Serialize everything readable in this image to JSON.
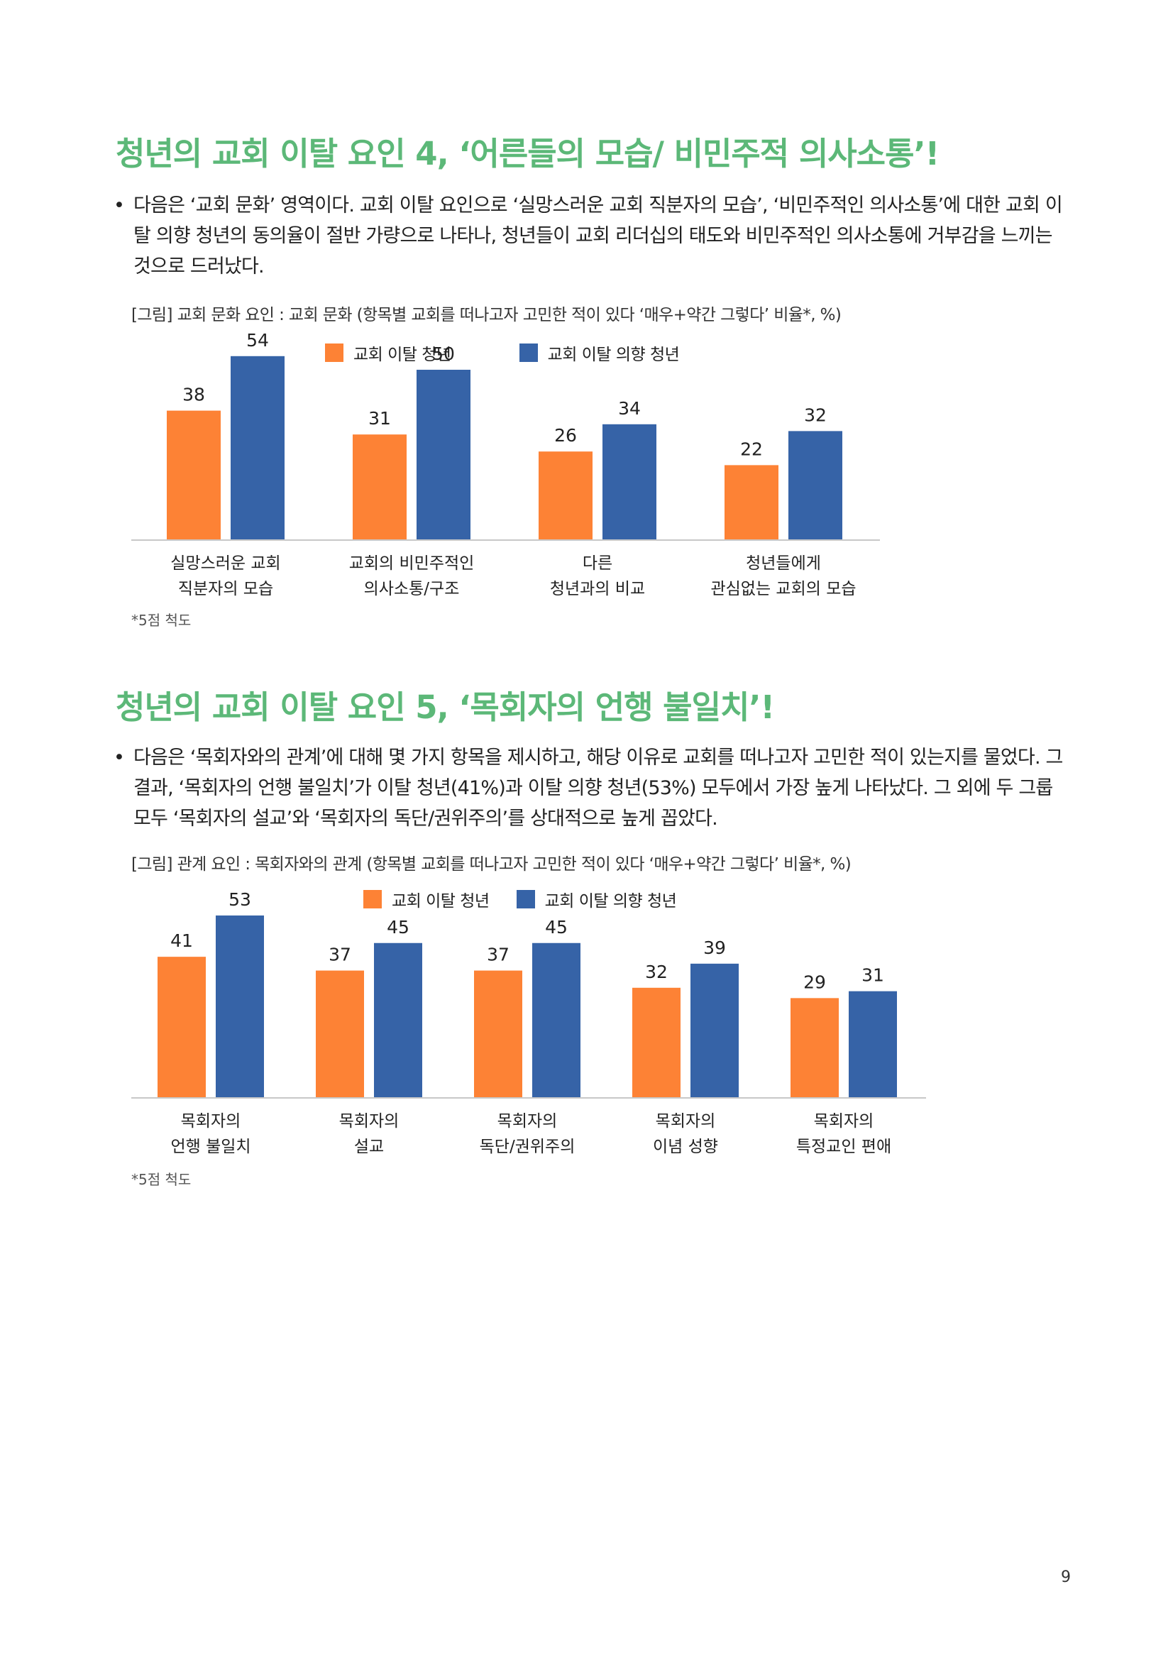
{
  "sections": [
    {
      "title": "청년의 교회 이탈 요인 4, ‘어른들의 모습/ 비민주적 의사소통’!",
      "bullet": "다음은 ‘교회 문화’ 영역이다. 교회 이탈 요인으로 ‘실망스러운 교회 직분자의 모습’, ‘비민주적인 의사소통’에 대한 교회 이탈 의향 청년의 동의율이 절반 가량으로 나타나, 청년들이 교회 리더십의 태도와 비민주적인 의사소통에 거부감을 느끼는 것으로 드러났다.",
      "caption": "[그림] 교회 문화 요인 : 교회 문화 (항목별 교회를 떠나고자 고민한 적이 있다 ‘매우+약간 그렇다’ 비율*, %)",
      "note": "*5점 척도"
    },
    {
      "title": "청년의 교회 이탈 요인 5, ‘목회자의 언행 불일치’!",
      "bullet": "다음은 ‘목회자와의 관계’에 대해 몇 가지 항목을 제시하고, 해당 이유로 교회를 떠나고자 고민한 적이 있는지를 물었다. 그 결과, ‘목회자의 언행 불일치’가 이탈 청년(41%)과 이탈 의향 청년(53%) 모두에서 가장 높게 나타났다. 그 외에 두 그룹 모두 ‘목회자의 설교’와 ‘목회자의 독단/권위주의’를 상대적으로 높게 꼽았다.",
      "caption": "[그림] 관계 요인 : 목회자와의 관계 (항목별 교회를 떠나고자 고민한 적이 있다 ‘매우+약간 그렇다’ 비율*, %)",
      "note": "*5점 척도"
    }
  ],
  "colors": {
    "title": "#5cb878",
    "series_a": "#fd8235",
    "series_b": "#3663a7",
    "axis": "#c8c8c8"
  },
  "chart_data": [
    {
      "type": "bar",
      "categories": [
        [
          "실망스러운 교회",
          "직분자의 모습"
        ],
        [
          "교회의 비민주적인",
          "의사소통/구조"
        ],
        [
          "다른",
          "청년과의 비교"
        ],
        [
          "청년들에게",
          "관심없는 교회의 모습"
        ]
      ],
      "series": [
        {
          "name": "교회 이탈 청년",
          "values": [
            38,
            31,
            26,
            22
          ]
        },
        {
          "name": "교회 이탈 의향 청년",
          "values": [
            54,
            50,
            34,
            32
          ]
        }
      ],
      "ylim": [
        0,
        60
      ],
      "grid": false,
      "legend": "top-center"
    },
    {
      "type": "bar",
      "categories": [
        [
          "목회자의",
          "언행 불일치"
        ],
        [
          "목회자의",
          "설교"
        ],
        [
          "목회자의",
          "독단/권위주의"
        ],
        [
          "목회자의",
          "이념 성향"
        ],
        [
          "목회자의",
          "특정교인 편애"
        ]
      ],
      "series": [
        {
          "name": "교회 이탈 청년",
          "values": [
            41,
            37,
            37,
            32,
            29
          ]
        },
        {
          "name": "교회 이탈 의향 청년",
          "values": [
            53,
            45,
            45,
            39,
            31
          ]
        }
      ],
      "ylim": [
        0,
        60
      ],
      "grid": false,
      "legend": "top-center"
    }
  ],
  "page_number": "9"
}
